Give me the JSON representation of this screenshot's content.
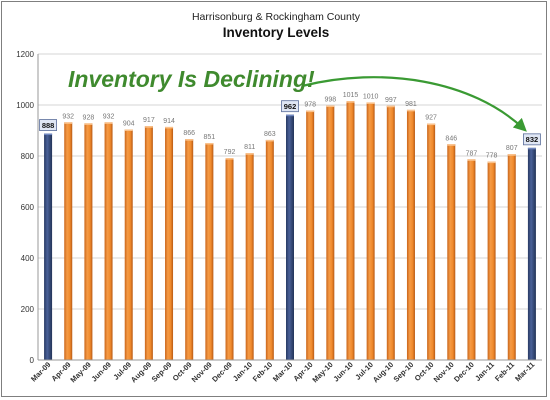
{
  "chart_data": {
    "type": "bar",
    "subtitle": "Harrisonburg & Rockingham County",
    "title": "Inventory Levels",
    "annotation": "Inventory Is Declining!",
    "categories": [
      "Mar-09",
      "Apr-09",
      "May-09",
      "Jun-09",
      "Jul-09",
      "Aug-09",
      "Sep-09",
      "Oct-09",
      "Nov-09",
      "Dec-09",
      "Jan-10",
      "Feb-10",
      "Mar-10",
      "Apr-10",
      "May-10",
      "Jun-10",
      "Jul-10",
      "Aug-10",
      "Sep-10",
      "Oct-10",
      "Nov-10",
      "Dec-10",
      "Jan-11",
      "Feb-11",
      "Mar-11"
    ],
    "values": [
      888,
      932,
      928,
      932,
      904,
      917,
      914,
      866,
      851,
      792,
      811,
      863,
      962,
      978,
      998,
      1015,
      1010,
      997,
      981,
      927,
      846,
      787,
      778,
      807,
      832
    ],
    "highlighted": [
      0,
      12,
      24
    ],
    "ylim": [
      0,
      1200
    ],
    "yticks": [
      0,
      200,
      400,
      600,
      800,
      1000,
      1200
    ],
    "xlabel": "",
    "ylabel": "",
    "grid": true,
    "colors": {
      "bar": "#f08a2c",
      "bar_highlight": "#3b4f7e",
      "annotation": "#3f8a2e",
      "arrow": "#3a9a33",
      "grid": "#d4d4d4"
    }
  }
}
